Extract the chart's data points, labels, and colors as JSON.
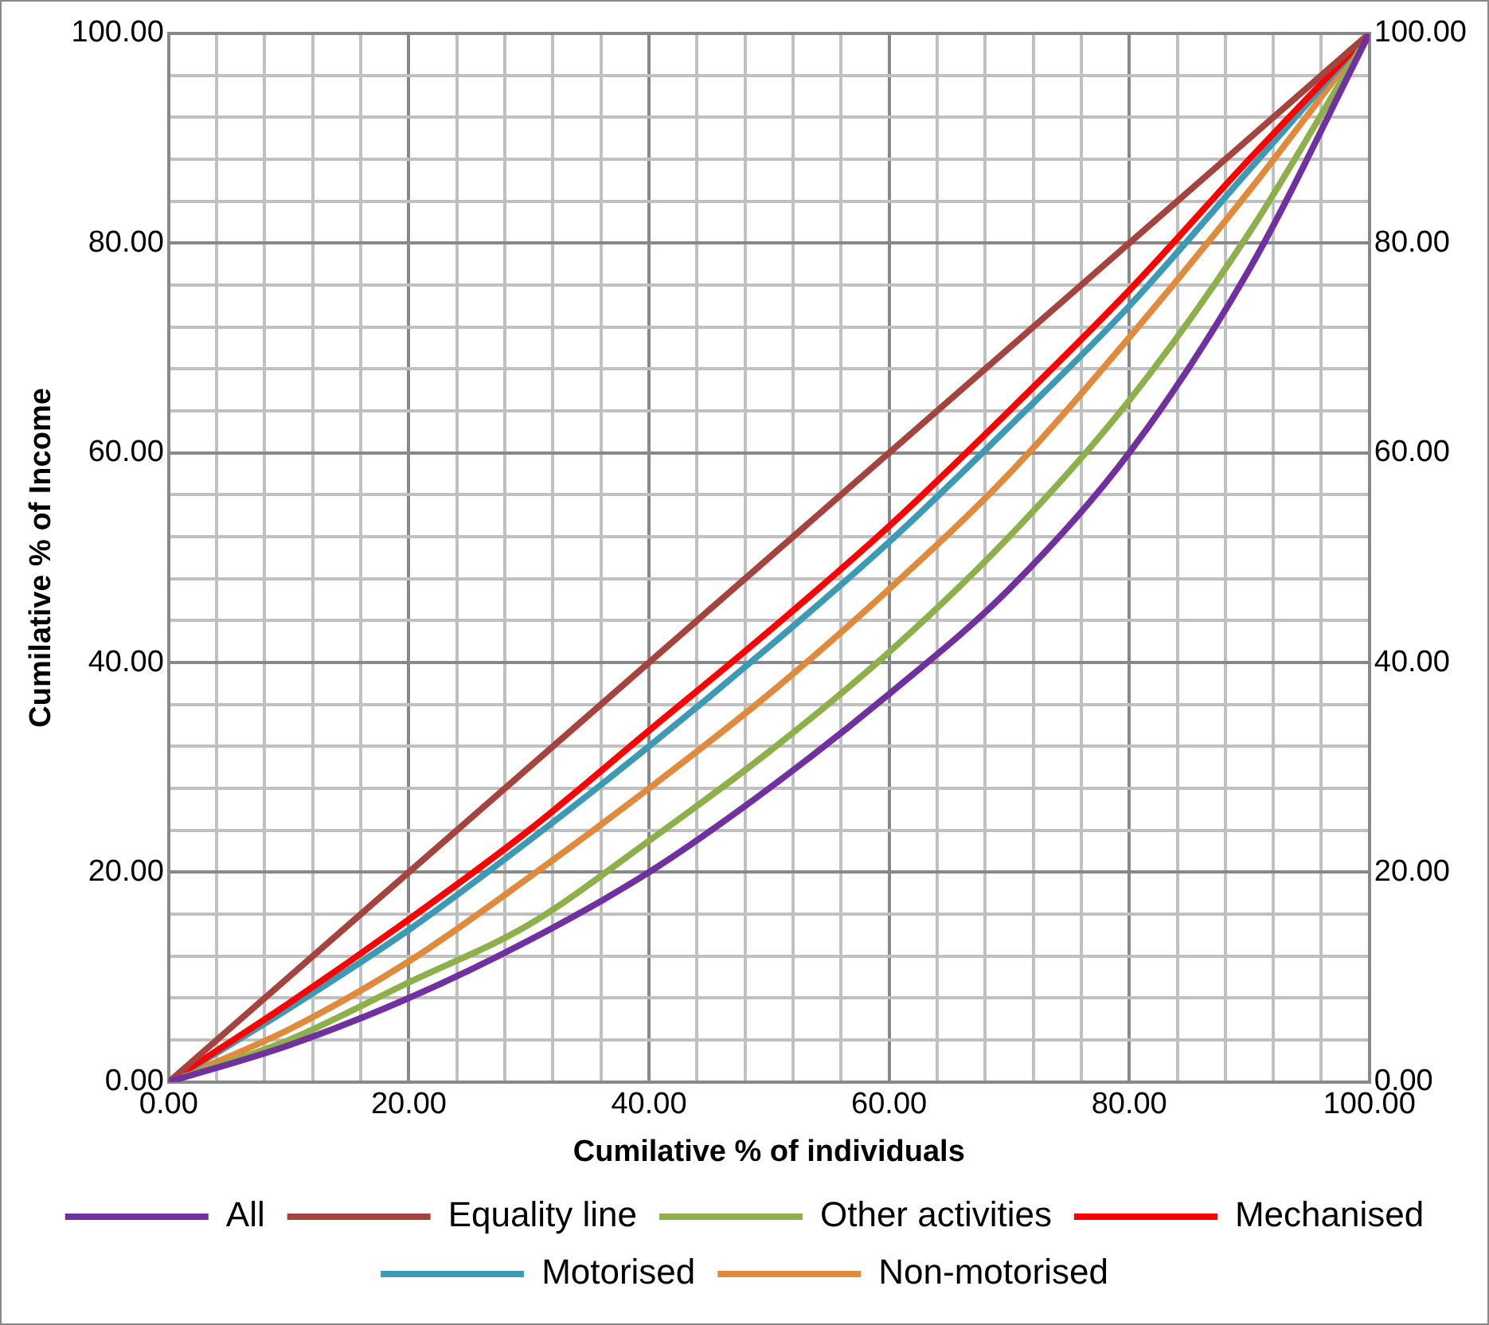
{
  "chart_data": {
    "type": "line",
    "xlabel": "Cumilative % of individuals",
    "ylabel": "Cumilative % of Income",
    "x": [
      0,
      10,
      20,
      30,
      40,
      50,
      60,
      70,
      80,
      90,
      100
    ],
    "series": [
      {
        "name": "All",
        "color": "#7030a0",
        "values": [
          0,
          3.5,
          8,
          13.5,
          20,
          28,
          37,
          47,
          60,
          77.5,
          100
        ]
      },
      {
        "name": "Equality line",
        "color": "#a5433e",
        "x": [
          0,
          100
        ],
        "values": [
          0,
          100
        ]
      },
      {
        "name": "Other activities",
        "color": "#8db04a",
        "values": [
          0,
          4,
          9.5,
          15,
          23,
          31.5,
          41,
          52,
          65,
          81,
          100
        ]
      },
      {
        "name": "Mechanised",
        "color": "#ff0000",
        "values": [
          0,
          7.5,
          15.5,
          24,
          33.5,
          43,
          53,
          64,
          75.5,
          88,
          100
        ]
      },
      {
        "name": "Motorised",
        "color": "#3c9ab5",
        "values": [
          0,
          7,
          14.5,
          23,
          32,
          41.5,
          51.5,
          62.5,
          74,
          87,
          100
        ]
      },
      {
        "name": "Non-motorised",
        "color": "#e08a3c",
        "values": [
          0,
          5,
          11.5,
          19.5,
          28,
          37,
          47,
          58,
          71,
          85,
          100
        ]
      }
    ],
    "xlim": [
      0,
      100
    ],
    "xticks": [
      {
        "value": 0,
        "label": "0.00"
      },
      {
        "value": 4,
        "label": null
      },
      {
        "value": 8,
        "label": null
      },
      {
        "value": 12,
        "label": null
      },
      {
        "value": 16,
        "label": null
      },
      {
        "value": 20,
        "label": "20.00"
      },
      {
        "value": 24,
        "label": null
      },
      {
        "value": 28,
        "label": null
      },
      {
        "value": 32,
        "label": null
      },
      {
        "value": 36,
        "label": null
      },
      {
        "value": 40,
        "label": "40.00"
      },
      {
        "value": 44,
        "label": null
      },
      {
        "value": 48,
        "label": null
      },
      {
        "value": 52,
        "label": null
      },
      {
        "value": 56,
        "label": null
      },
      {
        "value": 60,
        "label": "60.00"
      },
      {
        "value": 64,
        "label": null
      },
      {
        "value": 68,
        "label": null
      },
      {
        "value": 72,
        "label": null
      },
      {
        "value": 76,
        "label": null
      },
      {
        "value": 80,
        "label": "80.00"
      },
      {
        "value": 84,
        "label": null
      },
      {
        "value": 88,
        "label": null
      },
      {
        "value": 92,
        "label": null
      },
      {
        "value": 96,
        "label": null
      },
      {
        "value": 100,
        "label": "100.00"
      }
    ],
    "ylim": [
      0,
      100
    ],
    "yticks": [
      {
        "value": 0,
        "label": "0.00"
      },
      {
        "value": 4,
        "label": null
      },
      {
        "value": 8,
        "label": null
      },
      {
        "value": 12,
        "label": null
      },
      {
        "value": 16,
        "label": null
      },
      {
        "value": 20,
        "label": "20.00"
      },
      {
        "value": 24,
        "label": null
      },
      {
        "value": 28,
        "label": null
      },
      {
        "value": 32,
        "label": null
      },
      {
        "value": 36,
        "label": null
      },
      {
        "value": 40,
        "label": "40.00"
      },
      {
        "value": 44,
        "label": null
      },
      {
        "value": 48,
        "label": null
      },
      {
        "value": 52,
        "label": null
      },
      {
        "value": 56,
        "label": null
      },
      {
        "value": 60,
        "label": "60.00"
      },
      {
        "value": 64,
        "label": null
      },
      {
        "value": 68,
        "label": null
      },
      {
        "value": 72,
        "label": null
      },
      {
        "value": 76,
        "label": null
      },
      {
        "value": 80,
        "label": "80.00"
      },
      {
        "value": 84,
        "label": null
      },
      {
        "value": 88,
        "label": null
      },
      {
        "value": 92,
        "label": null
      },
      {
        "value": 96,
        "label": null
      },
      {
        "value": 100,
        "label": "100.00"
      }
    ],
    "y2lim": [
      0,
      100
    ],
    "y2ticks": [
      {
        "value": 0,
        "label": "0.00"
      },
      {
        "value": 20,
        "label": "20.00"
      },
      {
        "value": 40,
        "label": "40.00"
      },
      {
        "value": 60,
        "label": "60.00"
      },
      {
        "value": 80,
        "label": "80.00"
      },
      {
        "value": 100,
        "label": "100.00"
      }
    ],
    "grid": true,
    "legend": "bottom",
    "marker": "none",
    "line_style": "solid"
  }
}
